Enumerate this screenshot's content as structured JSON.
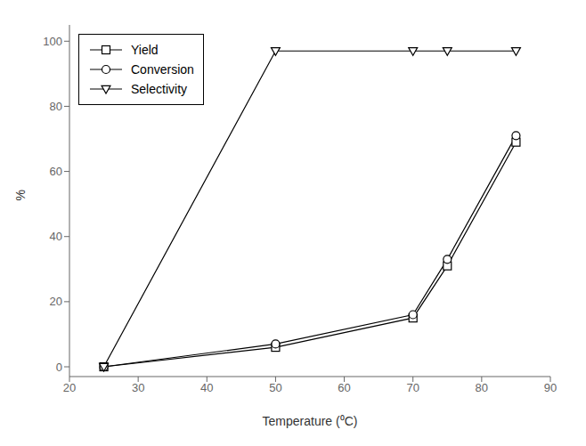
{
  "chart_data": {
    "type": "line",
    "x": [
      25,
      50,
      70,
      75,
      85
    ],
    "series": [
      {
        "name": "Yield",
        "color": "#000000",
        "marker": "square",
        "values": [
          0,
          6,
          15,
          31,
          69
        ]
      },
      {
        "name": "Conversion",
        "color": "#000000",
        "marker": "circle",
        "values": [
          0,
          7,
          16,
          33,
          71
        ]
      },
      {
        "name": "Selectivity",
        "color": "#000000",
        "marker": "triangle-down",
        "values": [
          0,
          97,
          97,
          97,
          97
        ]
      }
    ],
    "xlabel": "Temperature (⁰C)",
    "ylabel": "%",
    "xlim": [
      20,
      90
    ],
    "ylim": [
      -3,
      105
    ],
    "xticks": [
      20,
      30,
      40,
      50,
      60,
      70,
      80,
      90
    ],
    "yticks": [
      0,
      20,
      40,
      60,
      80,
      100
    ],
    "grid": false,
    "legend": "upper left"
  }
}
